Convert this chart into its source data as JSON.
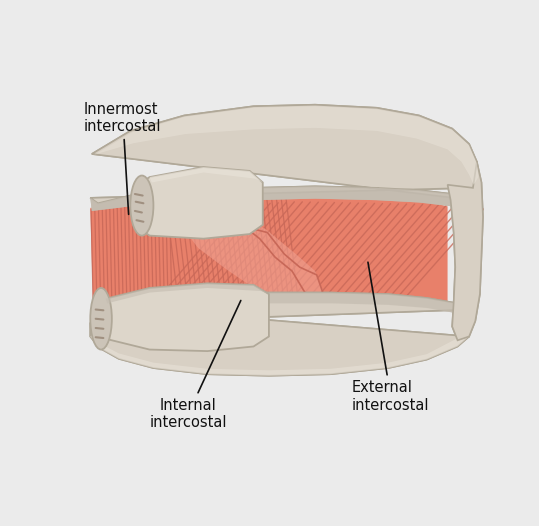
{
  "bg_color": "#ebebeb",
  "rib_fill": "#d8d0c4",
  "rib_edge": "#b0a898",
  "rib_shadow": "#c4bcb0",
  "rib_highlight": "#e8e2d8",
  "muscle_fill": "#e8806a",
  "muscle_dark": "#c86858",
  "muscle_light": "#f0a090",
  "muscle_line": "#c05a48",
  "labels": {
    "innermost": "Innermost\nintercostal",
    "internal": "Internal\nintercostal",
    "external": "External\nintercostal"
  },
  "label_fontsize": 10.5,
  "label_color": "#111111",
  "line_color": "#111111"
}
